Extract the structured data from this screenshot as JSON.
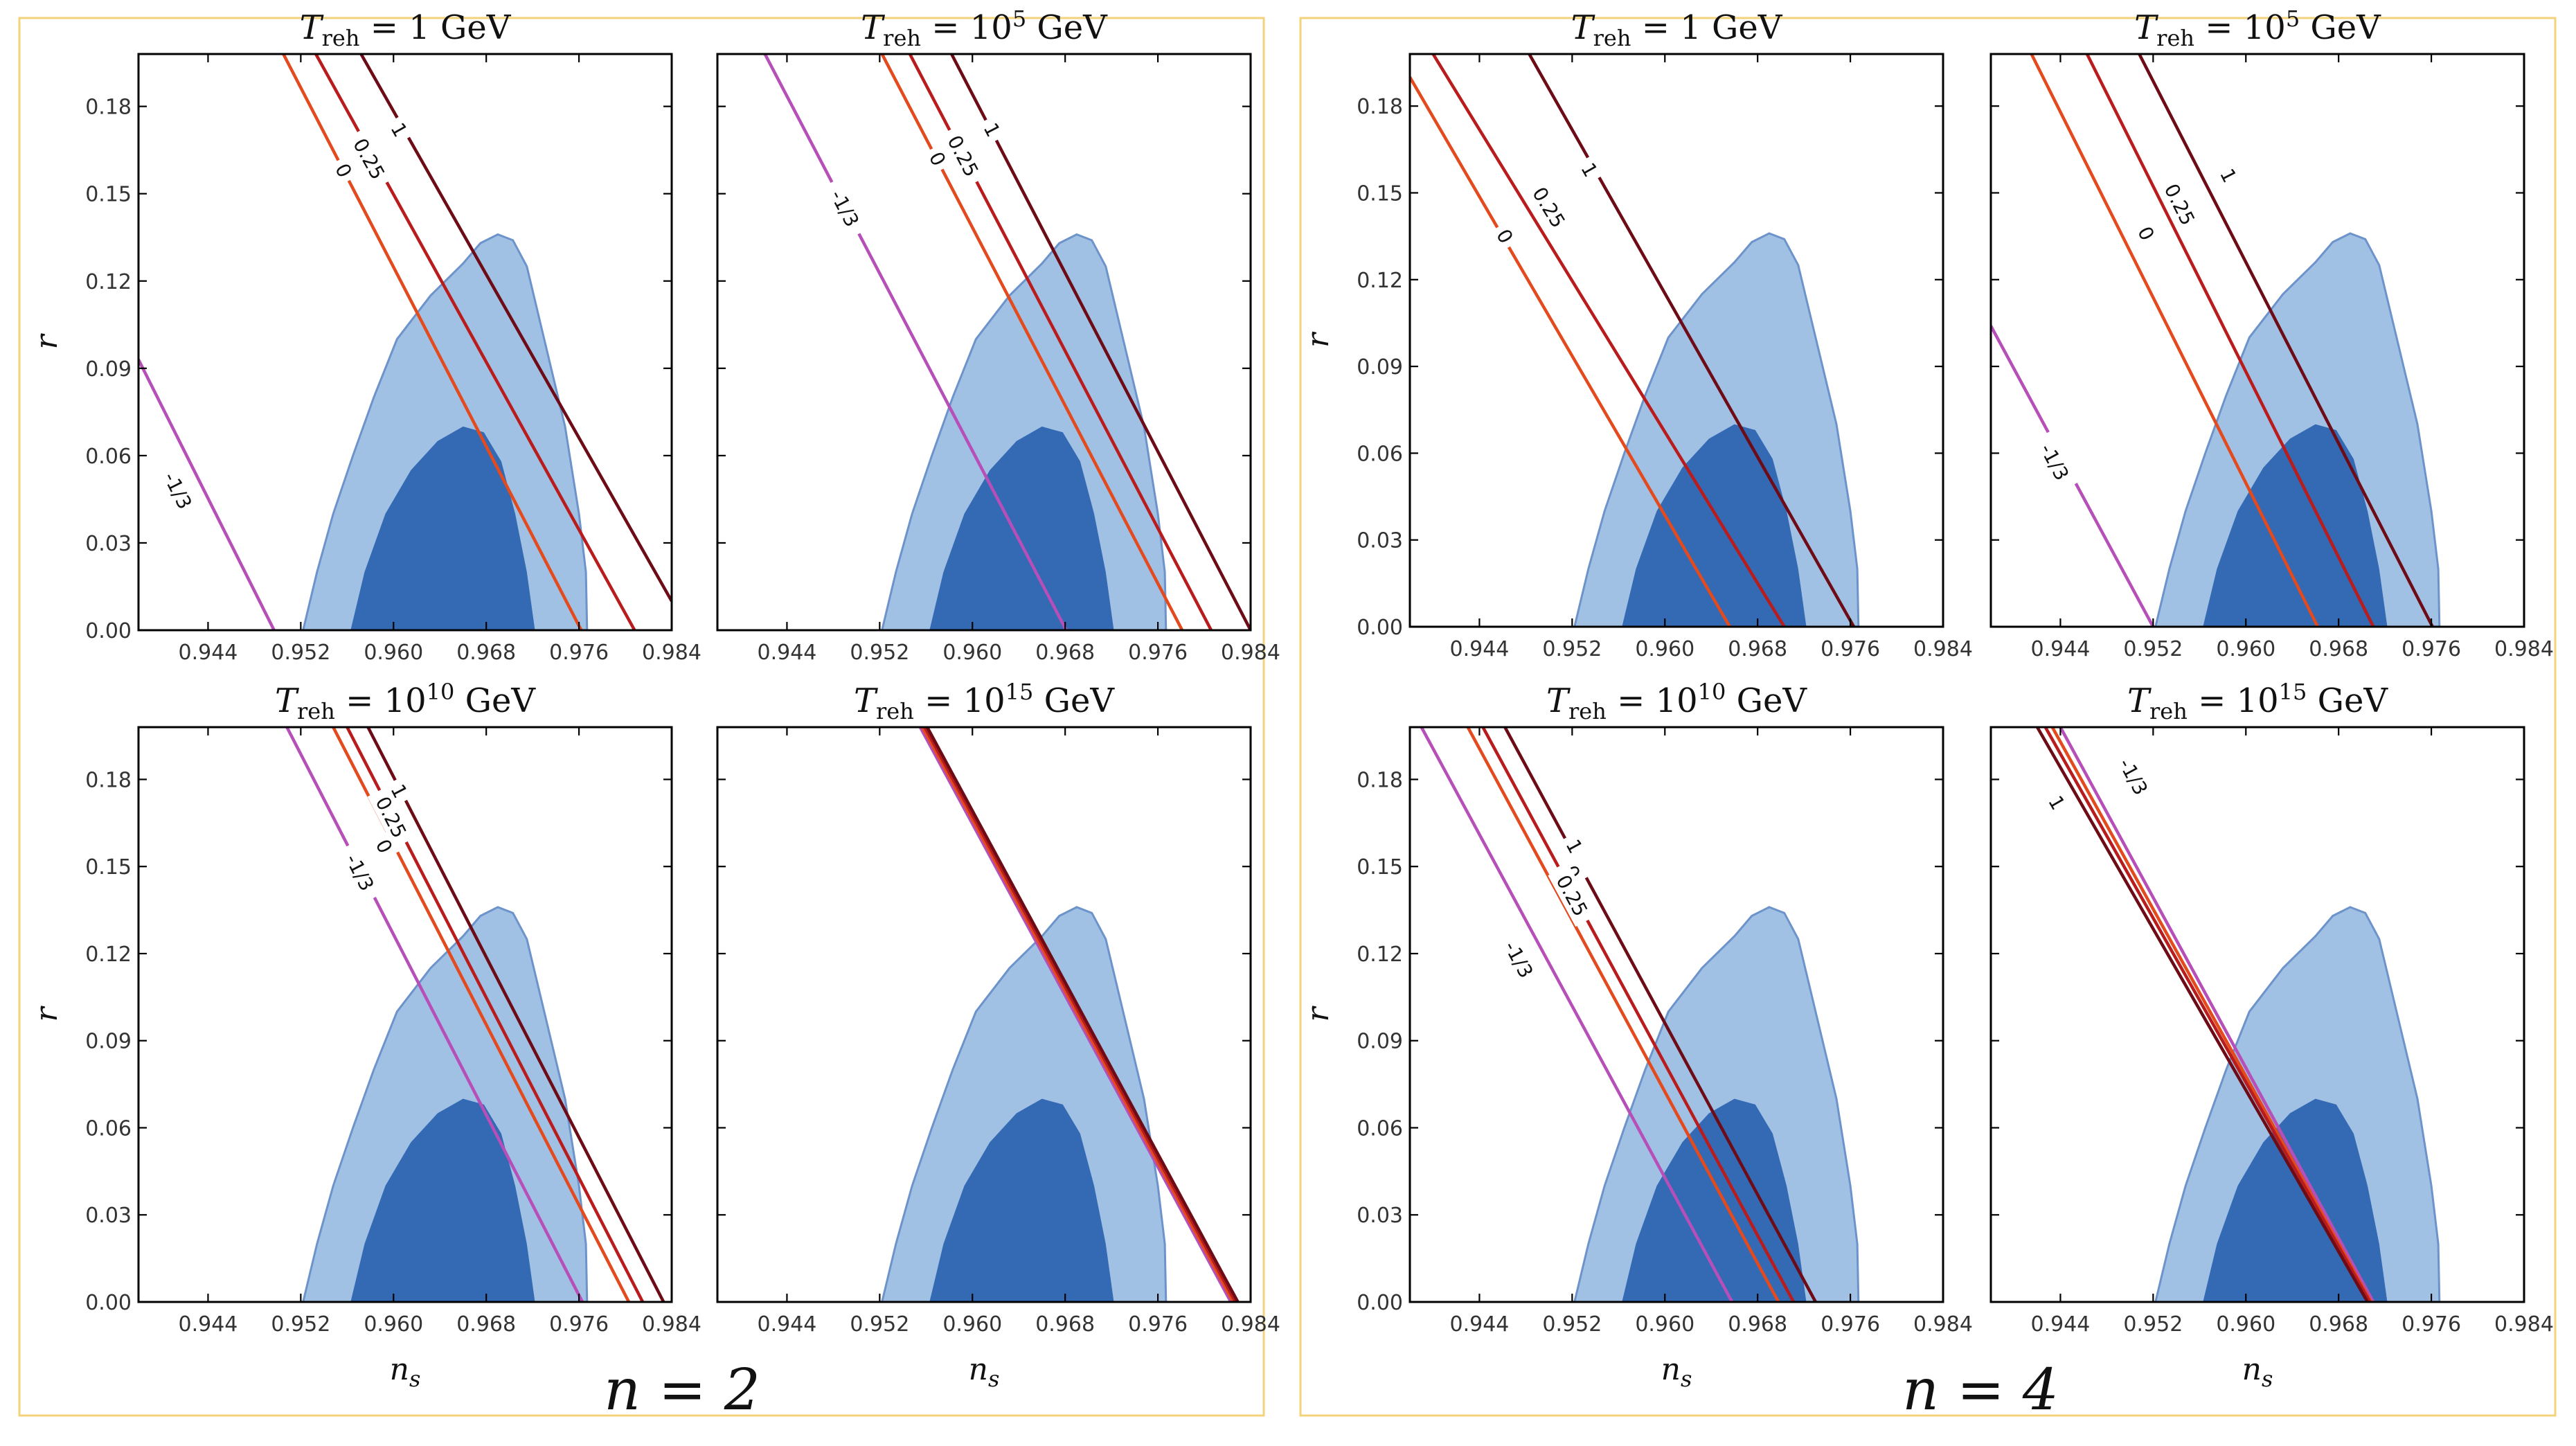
{
  "colors": {
    "region_1sigma": "#3469b4",
    "region_2sigma": "#a0c0e4",
    "region_edge": "#6d93cb",
    "w_-1/3": "#b64fb8",
    "w_0": "#e34a1e",
    "w_0.25": "#b91c1c",
    "w_1": "#6d0c16"
  },
  "groups": [
    {
      "label": "n = 2"
    },
    {
      "label": "n = 4"
    }
  ],
  "chart_data": [
    {
      "type": "line",
      "group": "n = 2",
      "title": "T_reh = 1 GeV",
      "title_base": "T",
      "title_sub": "reh",
      "title_rest": " = 1 GeV",
      "xlabel": "",
      "ylabel": "r",
      "xlim": [
        0.938,
        0.984
      ],
      "ylim": [
        0,
        0.198
      ],
      "xticks": [
        "0.944",
        "0.952",
        "0.960",
        "0.968",
        "0.976",
        "0.984"
      ],
      "yticks": [
        "0.00",
        "0.03",
        "0.06",
        "0.09",
        "0.12",
        "0.15",
        "0.18"
      ],
      "series": [
        {
          "name": "-1/3",
          "color_key": "w_-1/3",
          "x": [
            0.938,
            0.9497
          ],
          "y": [
            0.093,
            0.0
          ],
          "label_at": [
            0.9414,
            0.048
          ]
        },
        {
          "name": "0",
          "color_key": "w_0",
          "x": [
            0.9505,
            0.9762
          ],
          "y": [
            0.198,
            0.0
          ],
          "label_at": [
            0.9557,
            0.158
          ]
        },
        {
          "name": "0.25",
          "color_key": "w_0.25",
          "x": [
            0.9533,
            0.9808
          ],
          "y": [
            0.198,
            0.0
          ],
          "label_at": [
            0.9579,
            0.162
          ]
        },
        {
          "name": "1",
          "color_key": "w_1",
          "x": [
            0.9572,
            0.984
          ],
          "y": [
            0.198,
            0.01
          ],
          "label_at": [
            0.9605,
            0.172
          ]
        }
      ],
      "regions": {
        "2sigma_contour": true,
        "1sigma_contour": true
      }
    },
    {
      "type": "line",
      "group": "n = 2",
      "title": "T_reh = 10^5 GeV",
      "title_base": "T",
      "title_sub": "reh",
      "title_rest": " = 10",
      "title_sup": "5",
      "title_tail": " GeV",
      "xlabel": "",
      "ylabel": "",
      "xlim": [
        0.938,
        0.984
      ],
      "ylim": [
        0,
        0.198
      ],
      "xticks": [
        "0.944",
        "0.952",
        "0.960",
        "0.968",
        "0.976",
        "0.984"
      ],
      "yticks": [],
      "series": [
        {
          "name": "-1/3",
          "color_key": "w_-1/3",
          "x": [
            0.9421,
            0.9681
          ],
          "y": [
            0.198,
            0.0
          ],
          "label_at": [
            0.949,
            0.145
          ]
        },
        {
          "name": "0",
          "color_key": "w_0",
          "x": [
            0.9522,
            0.9781
          ],
          "y": [
            0.198,
            0.0
          ],
          "label_at": [
            0.957,
            0.162
          ]
        },
        {
          "name": "0.25",
          "color_key": "w_0.25",
          "x": [
            0.9546,
            0.9806
          ],
          "y": [
            0.198,
            0.0
          ],
          "label_at": [
            0.9592,
            0.163
          ]
        },
        {
          "name": "1",
          "color_key": "w_1",
          "x": [
            0.9582,
            0.984
          ],
          "y": [
            0.198,
            0.0
          ],
          "label_at": [
            0.9617,
            0.172
          ]
        }
      ],
      "regions": {
        "2sigma_contour": true,
        "1sigma_contour": true
      }
    },
    {
      "type": "line",
      "group": "n = 2",
      "title": "T_reh = 10^10 GeV",
      "title_base": "T",
      "title_sub": "reh",
      "title_rest": " = 10",
      "title_sup": "10",
      "title_tail": " GeV",
      "xlabel": "n_s",
      "ylabel": "r",
      "xlim": [
        0.938,
        0.984
      ],
      "ylim": [
        0,
        0.198
      ],
      "xticks": [
        "0.944",
        "0.952",
        "0.960",
        "0.968",
        "0.976",
        "0.984"
      ],
      "yticks": [
        "0.00",
        "0.03",
        "0.06",
        "0.09",
        "0.12",
        "0.15",
        "0.18"
      ],
      "series": [
        {
          "name": "-1/3",
          "color_key": "w_-1/3",
          "x": [
            0.9508,
            0.9763
          ],
          "y": [
            0.198,
            0.0
          ],
          "label_at": [
            0.9571,
            0.148
          ]
        },
        {
          "name": "0",
          "color_key": "w_0",
          "x": [
            0.9548,
            0.9803
          ],
          "y": [
            0.198,
            0.0
          ],
          "label_at": [
            0.9592,
            0.157
          ]
        },
        {
          "name": "0.25",
          "color_key": "w_0.25",
          "x": [
            0.956,
            0.9815
          ],
          "y": [
            0.198,
            0.0
          ],
          "label_at": [
            0.9598,
            0.167
          ]
        },
        {
          "name": "1",
          "color_key": "w_1",
          "x": [
            0.9578,
            0.9833
          ],
          "y": [
            0.198,
            0.0
          ],
          "label_at": [
            0.9605,
            0.176
          ]
        }
      ],
      "regions": {
        "2sigma_contour": true,
        "1sigma_contour": true
      }
    },
    {
      "type": "line",
      "group": "n = 2",
      "title": "T_reh = 10^15 GeV",
      "title_base": "T",
      "title_sub": "reh",
      "title_rest": " = 10",
      "title_sup": "15",
      "title_tail": " GeV",
      "xlabel": "n_s",
      "ylabel": "",
      "xlim": [
        0.938,
        0.984
      ],
      "ylim": [
        0,
        0.198
      ],
      "xticks": [
        "0.944",
        "0.952",
        "0.960",
        "0.968",
        "0.976",
        "0.984"
      ],
      "yticks": [],
      "series": [
        {
          "name": "-1/3",
          "color_key": "w_-1/3",
          "x": [
            0.9555,
            0.9823
          ],
          "y": [
            0.198,
            0.0
          ]
        },
        {
          "name": "0",
          "color_key": "w_0",
          "x": [
            0.9557,
            0.9825
          ],
          "y": [
            0.198,
            0.0
          ]
        },
        {
          "name": "0.25",
          "color_key": "w_0.25",
          "x": [
            0.9559,
            0.9827
          ],
          "y": [
            0.198,
            0.0
          ]
        },
        {
          "name": "1",
          "color_key": "w_1",
          "x": [
            0.9561,
            0.9829
          ],
          "y": [
            0.198,
            0.0
          ]
        }
      ],
      "regions": {
        "2sigma_contour": true,
        "1sigma_contour": true
      }
    },
    {
      "type": "line",
      "group": "n = 4",
      "title": "T_reh = 1 GeV",
      "title_base": "T",
      "title_sub": "reh",
      "title_rest": " = 1 GeV",
      "xlabel": "",
      "ylabel": "r",
      "xlim": [
        0.938,
        0.984
      ],
      "ylim": [
        0,
        0.198
      ],
      "xticks": [
        "0.944",
        "0.952",
        "0.960",
        "0.968",
        "0.976",
        "0.984"
      ],
      "yticks": [
        "0.00",
        "0.03",
        "0.06",
        "0.09",
        "0.12",
        "0.15",
        "0.18"
      ],
      "series": [
        {
          "name": "0",
          "color_key": "w_0",
          "x": [
            0.938,
            0.9656
          ],
          "y": [
            0.19,
            0.0
          ],
          "label_at": [
            0.9462,
            0.135
          ]
        },
        {
          "name": "0.25",
          "color_key": "w_0.25",
          "x": [
            0.94,
            0.9703
          ],
          "y": [
            0.198,
            0.0
          ],
          "label_at": [
            0.95,
            0.145
          ]
        },
        {
          "name": "1",
          "color_key": "w_1",
          "x": [
            0.9483,
            0.9763
          ],
          "y": [
            0.198,
            0.0
          ],
          "label_at": [
            0.9535,
            0.158
          ]
        }
      ],
      "regions": {
        "2sigma_contour": true,
        "1sigma_contour": true
      }
    },
    {
      "type": "line",
      "group": "n = 4",
      "title": "T_reh = 10^5 GeV",
      "title_base": "T",
      "title_sub": "reh",
      "title_rest": " = 10",
      "title_sup": "5",
      "title_tail": " GeV",
      "xlabel": "",
      "ylabel": "",
      "xlim": [
        0.938,
        0.984
      ],
      "ylim": [
        0,
        0.198
      ],
      "xticks": [
        "0.944",
        "0.952",
        "0.960",
        "0.968",
        "0.976",
        "0.984"
      ],
      "yticks": [],
      "series": [
        {
          "name": "-1/3",
          "color_key": "w_-1/3",
          "x": [
            0.938,
            0.952
          ],
          "y": [
            0.104,
            0.0
          ],
          "label_at": [
            0.9435,
            0.057
          ]
        },
        {
          "name": "0",
          "color_key": "w_0",
          "x": [
            0.9415,
            0.9662
          ],
          "y": [
            0.198,
            0.0
          ],
          "label_at": [
            0.9514,
            0.136
          ]
        },
        {
          "name": "0.25",
          "color_key": "w_0.25",
          "x": [
            0.9463,
            0.971
          ],
          "y": [
            0.198,
            0.0
          ],
          "label_at": [
            0.9543,
            0.146
          ]
        },
        {
          "name": "1",
          "color_key": "w_1",
          "x": [
            0.9508,
            0.9761
          ],
          "y": [
            0.198,
            0.0
          ],
          "label_at": [
            0.9585,
            0.156
          ]
        }
      ],
      "regions": {
        "2sigma_contour": true,
        "1sigma_contour": true
      }
    },
    {
      "type": "line",
      "group": "n = 4",
      "title": "T_reh = 10^10 GeV",
      "title_base": "T",
      "title_sub": "reh",
      "title_rest": " = 10",
      "title_sup": "10",
      "title_tail": " GeV",
      "xlabel": "n_s",
      "ylabel": "r",
      "xlim": [
        0.938,
        0.984
      ],
      "ylim": [
        0,
        0.198
      ],
      "xticks": [
        "0.944",
        "0.952",
        "0.960",
        "0.968",
        "0.976",
        "0.984"
      ],
      "yticks": [
        "0.00",
        "0.03",
        "0.06",
        "0.09",
        "0.12",
        "0.15",
        "0.18"
      ],
      "series": [
        {
          "name": "-1/3",
          "color_key": "w_-1/3",
          "x": [
            0.939,
            0.9658
          ],
          "y": [
            0.198,
            0.0
          ],
          "label_at": [
            0.9474,
            0.118
          ]
        },
        {
          "name": "0",
          "color_key": "w_0",
          "x": [
            0.943,
            0.9698
          ],
          "y": [
            0.198,
            0.0
          ],
          "label_at": [
            0.952,
            0.148
          ]
        },
        {
          "name": "0.25",
          "color_key": "w_0.25",
          "x": [
            0.9443,
            0.9711
          ],
          "y": [
            0.198,
            0.0
          ],
          "label_at": [
            0.952,
            0.14
          ]
        },
        {
          "name": "1",
          "color_key": "w_1",
          "x": [
            0.9462,
            0.973
          ],
          "y": [
            0.198,
            0.0
          ],
          "label_at": [
            0.9522,
            0.157
          ]
        }
      ],
      "regions": {
        "2sigma_contour": true,
        "1sigma_contour": true
      }
    },
    {
      "type": "line",
      "group": "n = 4",
      "title": "T_reh = 10^15 GeV",
      "title_base": "T",
      "title_sub": "reh",
      "title_rest": " = 10",
      "title_sup": "15",
      "title_tail": " GeV",
      "xlabel": "n_s",
      "ylabel": "",
      "xlim": [
        0.938,
        0.984
      ],
      "ylim": [
        0,
        0.198
      ],
      "xticks": [
        "0.944",
        "0.952",
        "0.960",
        "0.968",
        "0.976",
        "0.984"
      ],
      "yticks": [],
      "series": [
        {
          "name": "-1/3",
          "color_key": "w_-1/3",
          "x": [
            0.944,
            0.971
          ],
          "y": [
            0.198,
            0.0
          ],
          "label_at": [
            0.9503,
            0.181
          ]
        },
        {
          "name": "0",
          "color_key": "w_0",
          "x": [
            0.9433,
            0.9708
          ],
          "y": [
            0.198,
            0.0
          ]
        },
        {
          "name": "0.25",
          "color_key": "w_0.25",
          "x": [
            0.9427,
            0.9707
          ],
          "y": [
            0.198,
            0.0
          ]
        },
        {
          "name": "1",
          "color_key": "w_1",
          "x": [
            0.942,
            0.9705
          ],
          "y": [
            0.198,
            0.0
          ],
          "label_at": [
            0.9437,
            0.172
          ]
        }
      ],
      "regions": {
        "2sigma_contour": true,
        "1sigma_contour": true
      }
    }
  ],
  "contours": {
    "2sigma": [
      [
        0.9522,
        0.0
      ],
      [
        0.9534,
        0.02
      ],
      [
        0.9548,
        0.04
      ],
      [
        0.9565,
        0.06
      ],
      [
        0.9583,
        0.08
      ],
      [
        0.9603,
        0.1
      ],
      [
        0.9632,
        0.115
      ],
      [
        0.966,
        0.126
      ],
      [
        0.9675,
        0.133
      ],
      [
        0.969,
        0.136
      ],
      [
        0.9703,
        0.134
      ],
      [
        0.9715,
        0.125
      ],
      [
        0.973,
        0.1
      ],
      [
        0.9748,
        0.07
      ],
      [
        0.976,
        0.04
      ],
      [
        0.9766,
        0.02
      ],
      [
        0.9767,
        0.0
      ]
    ],
    "1sigma": [
      [
        0.9563,
        0.0
      ],
      [
        0.9575,
        0.02
      ],
      [
        0.9593,
        0.04
      ],
      [
        0.9615,
        0.055
      ],
      [
        0.9638,
        0.065
      ],
      [
        0.966,
        0.07
      ],
      [
        0.9678,
        0.068
      ],
      [
        0.9693,
        0.058
      ],
      [
        0.9705,
        0.04
      ],
      [
        0.9715,
        0.02
      ],
      [
        0.9722,
        0.0
      ]
    ]
  }
}
